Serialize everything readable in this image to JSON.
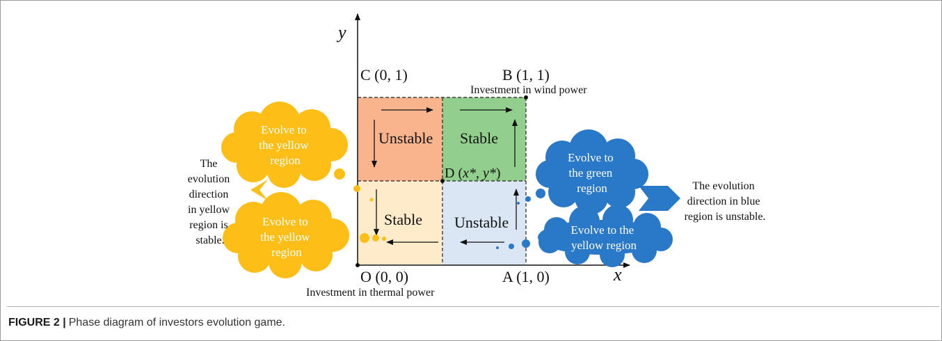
{
  "axes": {
    "x_label": "x",
    "y_label": "y"
  },
  "points": {
    "o": "O (0, 0)",
    "a": "A (1, 0)",
    "b": "B (1, 1)",
    "c": "C (0, 1)",
    "d_prefix": "D (",
    "d_x": "x*",
    "d_sep": ", ",
    "d_y": "y*",
    "d_suffix": ")"
  },
  "axis_notes": {
    "wind": "Investment in wind power",
    "thermal": "Investment in thermal power"
  },
  "regions": {
    "top_left": "Unstable",
    "top_right": "Stable",
    "bottom_left": "Stable",
    "bottom_right": "Unstable"
  },
  "clouds": {
    "yellow_top": [
      "Evolve to",
      "the yellow",
      "region"
    ],
    "yellow_bottom": [
      "Evolve to",
      "the yellow",
      "region"
    ],
    "blue_top": [
      "Evolve to",
      "the green",
      "region"
    ],
    "blue_bottom": [
      "Evolve to the",
      "yellow region"
    ]
  },
  "notes": {
    "left": [
      "The",
      "evolution",
      "direction",
      "in yellow",
      "region is",
      "stable."
    ],
    "right": [
      "The evolution",
      "direction in blue",
      "region is unstable."
    ]
  },
  "colors": {
    "orange_region": "#F9B38D",
    "green_region": "#92CF8C",
    "cream_region": "#FDEBC9",
    "blue_region": "#DAE6F3",
    "yellow_cloud": "#FDBF17",
    "blue_cloud": "#2A78C8"
  },
  "caption": {
    "label": "FIGURE 2 |",
    "text": "Phase diagram of investors evolution game."
  }
}
